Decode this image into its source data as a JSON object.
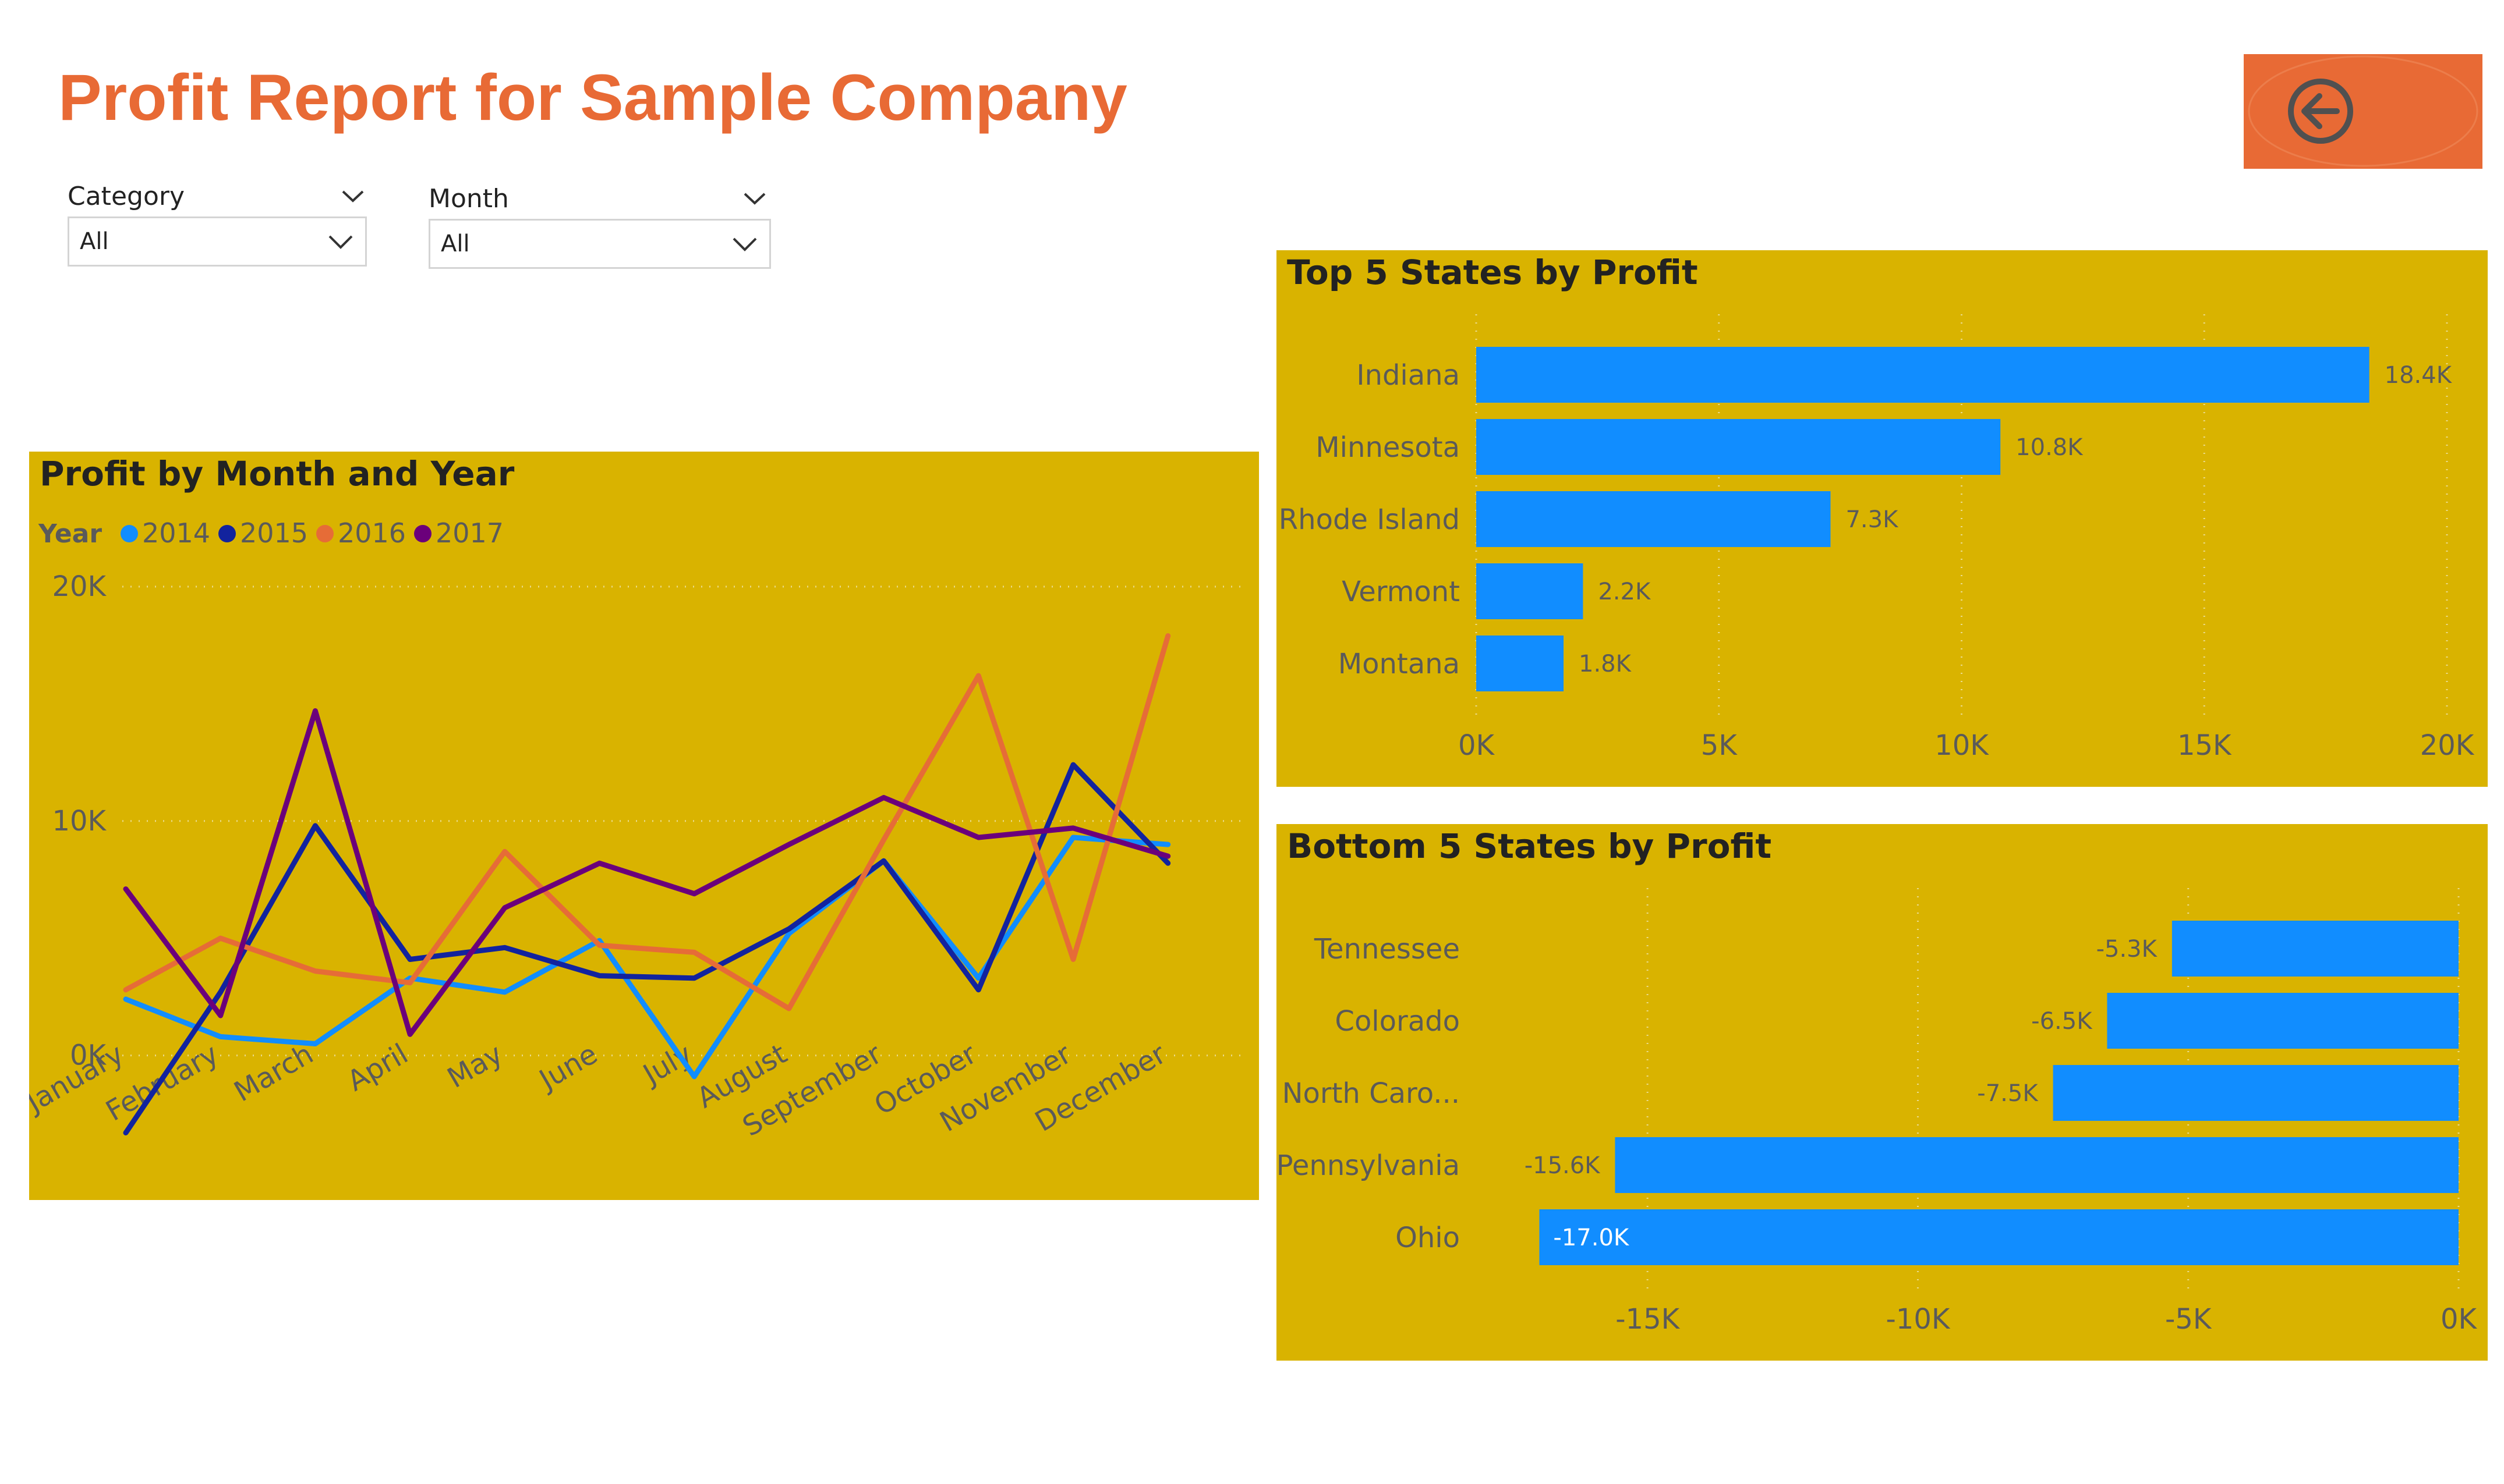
{
  "report": {
    "title": "Profit Report for Sample Company",
    "title_color": "#e86a35",
    "back_button_color": "#e86a35",
    "back_icon": "arrow-left-circle-icon"
  },
  "slicers": [
    {
      "label": "Category",
      "value": "All",
      "icon": "chevron-down-icon"
    },
    {
      "label": "Month",
      "value": "All",
      "icon": "chevron-down-icon"
    }
  ],
  "theme": {
    "panel_bg": "#d9b300",
    "bar_color": "#118dff",
    "text_dark": "#222222",
    "text_muted": "#5a5a5a"
  },
  "chart_data": [
    {
      "id": "line",
      "type": "line",
      "title": "Profit by Month and Year",
      "legend_title": "Year",
      "legend_position": "top-left",
      "categories": [
        "January",
        "February",
        "March",
        "April",
        "May",
        "June",
        "July",
        "August",
        "September",
        "October",
        "November",
        "December"
      ],
      "yticks": [
        "20K",
        "10K",
        "0K"
      ],
      "ylim": [
        -5000,
        20000
      ],
      "grid": true,
      "series": [
        {
          "name": "2014",
          "color": "#118dff",
          "values": [
            2400,
            800,
            500,
            3300,
            2700,
            4900,
            -900,
            5200,
            8300,
            3300,
            9300,
            9000
          ]
        },
        {
          "name": "2015",
          "color": "#12239e",
          "values": [
            -3300,
            2700,
            9800,
            4100,
            4600,
            3400,
            3300,
            5400,
            8300,
            2800,
            12400,
            8200
          ]
        },
        {
          "name": "2016",
          "color": "#e66c37",
          "values": [
            2800,
            5000,
            3600,
            3100,
            8700,
            4700,
            4400,
            2000,
            9200,
            16200,
            4100,
            17900
          ]
        },
        {
          "name": "2017",
          "color": "#6b007b",
          "values": [
            7100,
            1700,
            14700,
            900,
            6300,
            8200,
            6900,
            9000,
            11000,
            9300,
            9700,
            8500
          ]
        }
      ]
    },
    {
      "id": "top",
      "type": "bar",
      "orientation": "horizontal",
      "title": "Top 5 States by Profit",
      "categories": [
        "Indiana",
        "Minnesota",
        "Rhode Island",
        "Vermont",
        "Montana"
      ],
      "values": [
        18400,
        10800,
        7300,
        2200,
        1800
      ],
      "data_labels": [
        "18.4K",
        "10.8K",
        "7.3K",
        "2.2K",
        "1.8K"
      ],
      "xticks": [
        0,
        5000,
        10000,
        15000,
        20000
      ],
      "xtick_labels": [
        "0K",
        "5K",
        "10K",
        "15K",
        "20K"
      ],
      "xlim": [
        0,
        20000
      ],
      "grid": true
    },
    {
      "id": "bottom",
      "type": "bar",
      "orientation": "horizontal",
      "title": "Bottom 5 States by Profit",
      "categories": [
        "Tennessee",
        "Colorado",
        "North Caro...",
        "Pennsylvania",
        "Ohio"
      ],
      "values": [
        -5300,
        -6500,
        -7500,
        -15600,
        -17000
      ],
      "data_labels": [
        "-5.3K",
        "-6.5K",
        "-7.5K",
        "-15.6K",
        "-17.0K"
      ],
      "xticks": [
        -15000,
        -10000,
        -5000,
        0
      ],
      "xtick_labels": [
        "-15K",
        "-10K",
        "-5K",
        "0K"
      ],
      "xlim": [
        -18200,
        0
      ],
      "grid": true
    }
  ]
}
